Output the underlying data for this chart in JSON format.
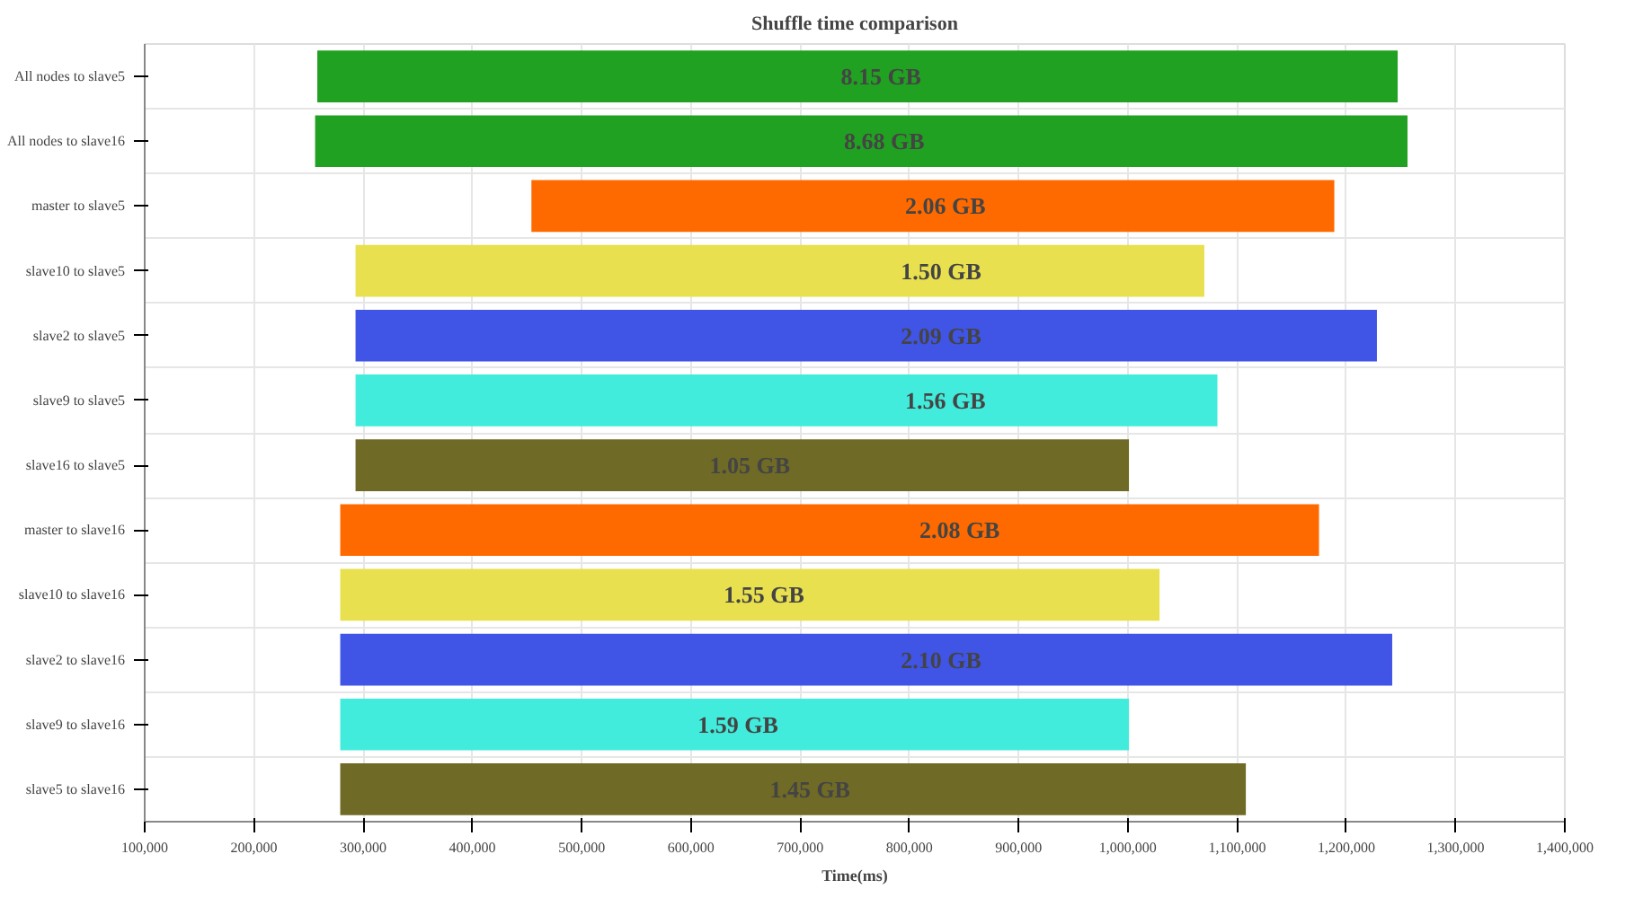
{
  "chart_data": {
    "type": "bar",
    "orientation": "horizontal",
    "title": "Shuffle time comparison",
    "xlabel": "Time(ms)",
    "categories": [
      "All nodes to slave5",
      "All nodes to slave16",
      "master to slave5",
      "slave10 to slave5",
      "slave2 to slave5",
      "slave9 to slave5",
      "slave16 to slave5",
      "master to slave16",
      "slave10 to slave16",
      "slave2 to slave16",
      "slave9 to slave16",
      "slave5 to slave16"
    ],
    "base": [
      258000,
      256000,
      454000,
      293000,
      293000,
      293000,
      293000,
      279000,
      279000,
      279000,
      279000,
      279000
    ],
    "values": [
      989000,
      1000000,
      735000,
      777000,
      935000,
      789000,
      708000,
      896000,
      750000,
      963000,
      722000,
      829000
    ],
    "colors": [
      "#21a121",
      "#21a121",
      "#ff6a00",
      "#e8e04e",
      "#4054e6",
      "#42ecdc",
      "#6f6a26",
      "#ff6a00",
      "#e8e04e",
      "#4054e6",
      "#42ecdc",
      "#6f6a26"
    ],
    "xlim": [
      100000,
      1400000
    ],
    "xticks": [
      {
        "value": 100000,
        "label": "100,000"
      },
      {
        "value": 200000,
        "label": "200,000"
      },
      {
        "value": 300000,
        "label": "300,000"
      },
      {
        "value": 400000,
        "label": "400,000"
      },
      {
        "value": 500000,
        "label": "500,000"
      },
      {
        "value": 600000,
        "label": "600,000"
      },
      {
        "value": 700000,
        "label": "700,000"
      },
      {
        "value": 800000,
        "label": "800,000"
      },
      {
        "value": 900000,
        "label": "900,000"
      },
      {
        "value": 1000000,
        "label": "1,000,000"
      },
      {
        "value": 1100000,
        "label": "1,100,000"
      },
      {
        "value": 1200000,
        "label": "1,200,000"
      },
      {
        "value": 1300000,
        "label": "1,300,000"
      },
      {
        "value": 1400000,
        "label": "1,400,000"
      }
    ],
    "grid": true,
    "annotations": [
      {
        "text": "8.15 GB",
        "x": 774000,
        "y": "All nodes to slave5"
      },
      {
        "text": "8.68 GB",
        "x": 777000,
        "y": "All nodes to slave16"
      },
      {
        "text": "2.06 GB",
        "x": 833000,
        "y": "master to slave5"
      },
      {
        "text": "1.50 GB",
        "x": 829000,
        "y": "slave10 to slave5"
      },
      {
        "text": "2.09 GB",
        "x": 829000,
        "y": "slave2 to slave5"
      },
      {
        "text": "1.56 GB",
        "x": 833000,
        "y": "slave9 to slave5"
      },
      {
        "text": "1.05 GB",
        "x": 654000,
        "y": "slave16 to slave5"
      },
      {
        "text": "2.08 GB",
        "x": 846000,
        "y": "master to slave16"
      },
      {
        "text": "1.55 GB",
        "x": 667000,
        "y": "slave10 to slave16"
      },
      {
        "text": "2.10 GB",
        "x": 829000,
        "y": "slave2 to slave16"
      },
      {
        "text": "1.59 GB",
        "x": 643000,
        "y": "slave9 to slave16"
      },
      {
        "text": "1.45 GB",
        "x": 709000,
        "y": "slave5 to slave16"
      }
    ]
  }
}
